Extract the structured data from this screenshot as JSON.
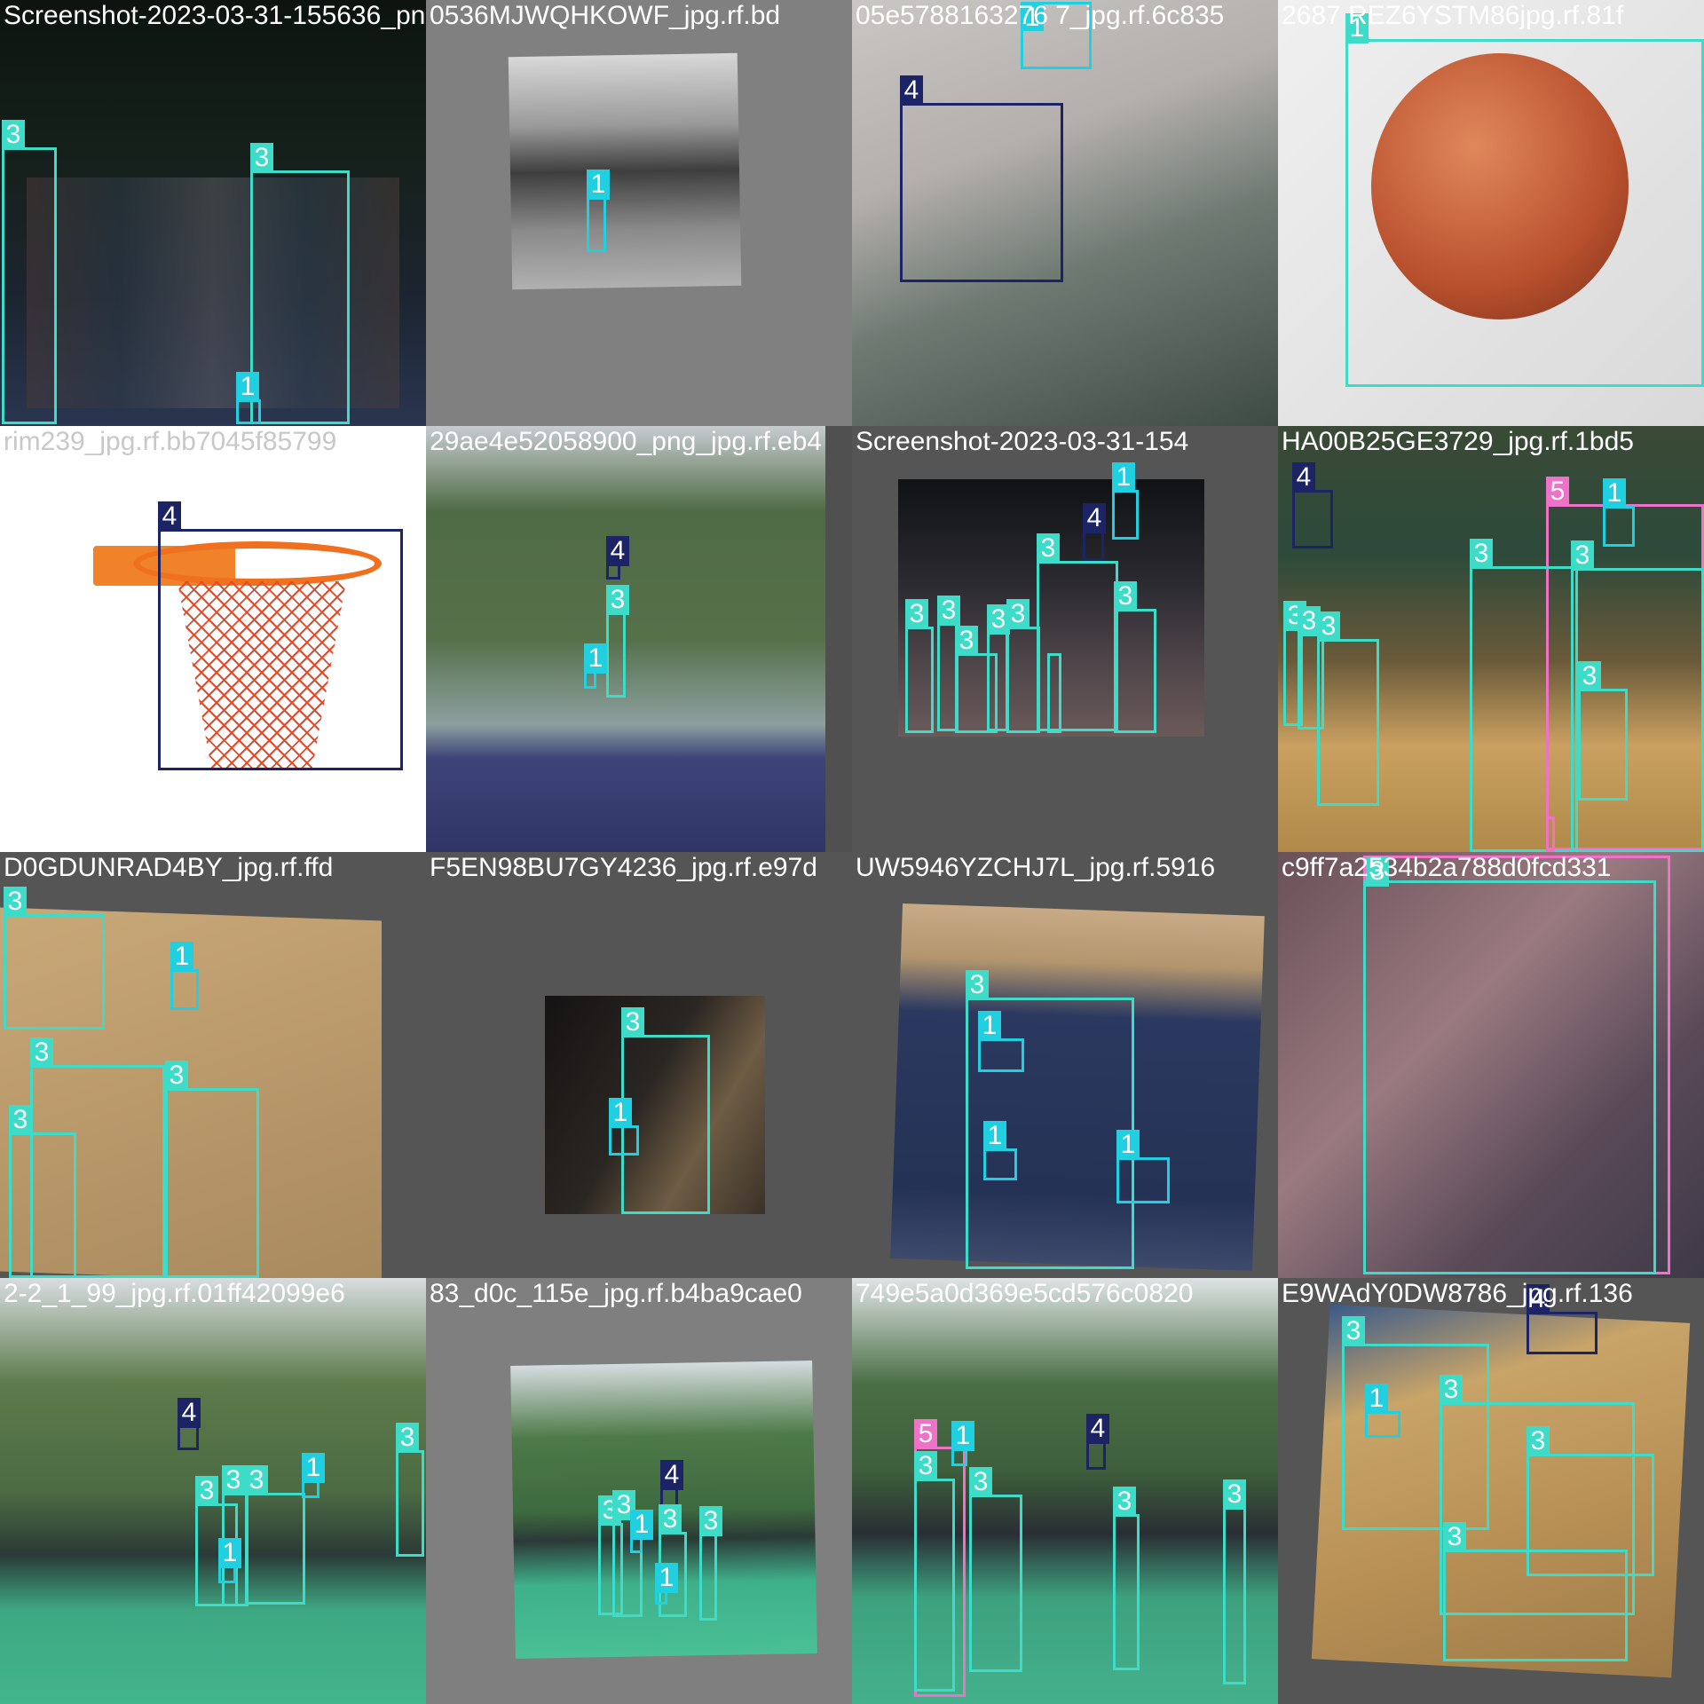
{
  "mosaic": {
    "cells": [
      {
        "filename": "Screenshot-2023-03-31-155636_png.rf.",
        "labels": [
          "3",
          "3",
          "1"
        ]
      },
      {
        "filename": "0536MJWQHKOWF_jpg.rf.bd",
        "labels": [
          "1"
        ]
      },
      {
        "filename": "05e5788163276 7_jpg.rf.6c835",
        "labels": [
          "1",
          "4"
        ]
      },
      {
        "filename": "2687 REZ6YSTM86jpg.rf.81f",
        "labels": [
          "1"
        ]
      },
      {
        "filename": "rim239_jpg.rf.bb7045f85799",
        "labels": [
          "4"
        ]
      },
      {
        "filename": "29ae4e52058900_png_jpg.rf.eb4",
        "labels": [
          "4",
          "3",
          "1"
        ]
      },
      {
        "filename": "Screenshot-2023-03-31-154",
        "labels": [
          "1",
          "4",
          "3",
          "3",
          "3",
          "3",
          "3",
          "3",
          "3",
          "3"
        ]
      },
      {
        "filename": "HA00B25GE3729_jpg.rf.1bd5",
        "labels": [
          "4",
          "5",
          "1",
          "3",
          "3",
          "3",
          "3",
          "3",
          "3",
          "3"
        ]
      },
      {
        "filename": "D0GDUNRAD4BY_jpg.rf.ffd",
        "labels": [
          "3",
          "1",
          "3",
          "3",
          "3"
        ]
      },
      {
        "filename": "F5EN98BU7GY4236_jpg.rf.e97d",
        "labels": [
          "3",
          "1"
        ]
      },
      {
        "filename": "UW5946YZCHJ7L_jpg.rf.5916",
        "labels": [
          "3",
          "1",
          "1",
          "1"
        ]
      },
      {
        "filename": "c9ff7a2534b2a788d0fcd331",
        "labels": [
          "5",
          "3"
        ]
      },
      {
        "filename": "2-2_1_99_jpg.rf.01ff42099e6",
        "labels": [
          "4",
          "3",
          "3",
          "3",
          "1",
          "3",
          "1"
        ]
      },
      {
        "filename": "83_d0c_115e_jpg.rf.b4ba9cae0",
        "labels": [
          "4",
          "3",
          "3",
          "1",
          "3",
          "3",
          "1"
        ]
      },
      {
        "filename": "749e5a0d369e5cd576c0820",
        "labels": [
          "5",
          "1",
          "3",
          "3",
          "4",
          "3",
          "3"
        ]
      },
      {
        "filename": "E9WAdY0DW8786_jpg.rf.136",
        "labels": [
          "3",
          "4",
          "1",
          "3",
          "3",
          "3"
        ]
      }
    ]
  }
}
